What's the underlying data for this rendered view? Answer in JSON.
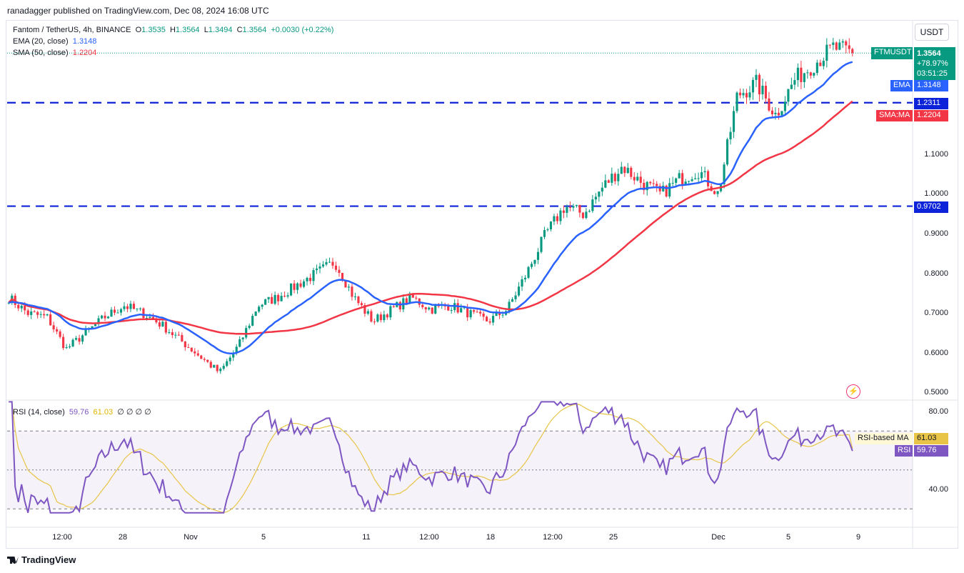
{
  "publisher": "ranadagger published on TradingView.com, Dec 08, 2024 16:08 UTC",
  "legend": {
    "symbol": "Fantom / TetherUS, 4h, BINANCE",
    "o_label": "O",
    "o": "1.3535",
    "h_label": "H",
    "h": "1.3564",
    "l_label": "L",
    "l": "1.3494",
    "c_label": "C",
    "c": "1.3564",
    "change": "+0.0030 (+0.22%)",
    "ema_label": "EMA (20, close)",
    "ema_value": "1.3148",
    "sma_label": "SMA (50, close)",
    "sma_value": "1.2204"
  },
  "rsi_legend": {
    "label": "RSI (14, close)",
    "rsi_value": "59.76",
    "ma_value": "61.03",
    "extra": "∅ ∅ ∅ ∅"
  },
  "currency_button": "USDT",
  "price_axis_labels": [
    "1.1000",
    "1.0000",
    "0.9000",
    "0.8000",
    "0.7000",
    "0.6000",
    "0.5000"
  ],
  "rsi_axis_labels": [
    "80.00",
    "40.00"
  ],
  "tags": {
    "ticker": "FTMUSDT",
    "price": "1.3564",
    "change_pct": "+78.97%",
    "countdown": "03:51:25",
    "ema_tag": "EMA",
    "ema_price": "1.3148",
    "sma_tag": "SMA:MA",
    "sma_price": "1.2204",
    "resistance": "1.2311",
    "support": "0.9702",
    "rsi_ma_tag": "RSI-based MA",
    "rsi_ma_value": "61.03",
    "rsi_tag": "RSI",
    "rsi_value": "59.76"
  },
  "x_labels": [
    "12:00",
    "28",
    "Nov",
    "5",
    "11",
    "12:00",
    "18",
    "12:00",
    "25",
    "Dec",
    "5",
    "9"
  ],
  "branding": "TradingView",
  "colors": {
    "up": "#089981",
    "down": "#f23645",
    "ema": "#2962ff",
    "sma": "#f23645",
    "rsi": "#7e57c2",
    "rsi_ma": "#e8c547",
    "level": "#0d23d9",
    "rsi_band": "#7e57c2"
  },
  "chart_data": [
    {
      "type": "candlestick",
      "title": "Fantom / TetherUS, 4h, BINANCE",
      "ylim": [
        0.48,
        1.4
      ],
      "horizontal_levels": [
        1.2311,
        0.9702
      ],
      "price_path": [
        [
          "Oct 20",
          0.74
        ],
        [
          "Oct 22",
          0.7
        ],
        [
          "Oct 24",
          0.69
        ],
        [
          "Oct 25",
          0.61
        ],
        [
          "Oct 26",
          0.65
        ],
        [
          "Oct 28",
          0.69
        ],
        [
          "Oct 29",
          0.72
        ],
        [
          "Oct 30",
          0.7
        ],
        [
          "Oct 31",
          0.67
        ],
        [
          "Nov 2",
          0.63
        ],
        [
          "Nov 3",
          0.59
        ],
        [
          "Nov 5",
          0.55
        ],
        [
          "Nov 6",
          0.62
        ],
        [
          "Nov 7",
          0.72
        ],
        [
          "Nov 9",
          0.74
        ],
        [
          "Nov 10",
          0.77
        ],
        [
          "Nov 11",
          0.8
        ],
        [
          "Nov 12",
          0.83
        ],
        [
          "Nov 13",
          0.74
        ],
        [
          "Nov 14",
          0.68
        ],
        [
          "Nov 15",
          0.71
        ],
        [
          "Nov 17",
          0.74
        ],
        [
          "Nov 18",
          0.71
        ],
        [
          "Nov 19",
          0.72
        ],
        [
          "Nov 20",
          0.7
        ],
        [
          "Nov 21",
          0.68
        ],
        [
          "Nov 22",
          0.71
        ],
        [
          "Nov 23",
          0.8
        ],
        [
          "Nov 24",
          0.9
        ],
        [
          "Nov 25",
          0.97
        ],
        [
          "Nov 26",
          0.95
        ],
        [
          "Nov 27",
          1.02
        ],
        [
          "Nov 28",
          1.07
        ],
        [
          "Nov 29",
          1.03
        ],
        [
          "Nov 30",
          1.0
        ],
        [
          "Dec 1",
          1.04
        ],
        [
          "Dec 2",
          1.06
        ],
        [
          "Dec 3",
          1.0
        ],
        [
          "Dec 3b",
          1.25
        ],
        [
          "Dec 4",
          1.28
        ],
        [
          "Dec 5",
          1.2
        ],
        [
          "Dec 6",
          1.29
        ],
        [
          "Dec 7",
          1.33
        ],
        [
          "Dec 8",
          1.37
        ],
        [
          "Dec 8b",
          1.3564
        ]
      ],
      "series": [
        {
          "name": "EMA (20, close)",
          "last": 1.3148
        },
        {
          "name": "SMA (50, close)",
          "last": 1.2204
        }
      ]
    },
    {
      "type": "line",
      "title": "RSI (14, close)",
      "ylim": [
        25,
        85
      ],
      "bands": [
        70,
        30
      ],
      "series": [
        {
          "name": "RSI",
          "last": 59.76
        },
        {
          "name": "RSI-based MA",
          "last": 61.03
        }
      ]
    }
  ]
}
